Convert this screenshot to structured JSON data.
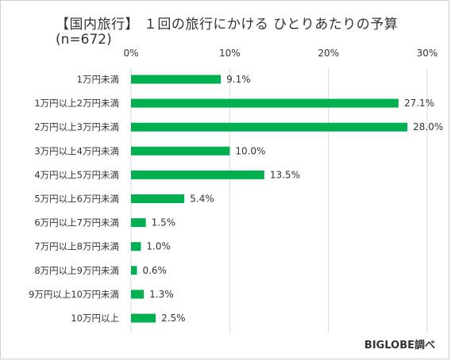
{
  "header": {
    "title": "【国内旅行】 １回の旅行にかける ひとりあたりの予算",
    "subtitle": "(n=672)"
  },
  "footer": {
    "source": "BIGLOBE調べ"
  },
  "colors": {
    "bar": "#00b050",
    "grid": "#d9d9d9"
  },
  "chart_data": {
    "type": "bar",
    "orientation": "horizontal",
    "title": "【国内旅行】 １回の旅行にかける ひとりあたりの予算",
    "subtitle": "(n=672)",
    "categories": [
      "1万円未満",
      "1万円以上2万円未満",
      "2万円以上3万円未満",
      "3万円以上4万円未満",
      "4万円以上5万円未満",
      "5万円以上6万円未満",
      "6万円以上7万円未満",
      "7万円以上8万円未満",
      "8万円以上9万円未満",
      "9万円以上10万円未満",
      "10万円以上"
    ],
    "values": [
      9.1,
      27.1,
      28.0,
      10.0,
      13.5,
      5.4,
      1.5,
      1.0,
      0.6,
      1.3,
      2.5
    ],
    "value_labels": [
      "9.1%",
      "27.1%",
      "28.0%",
      "10.0%",
      "13.5%",
      "5.4%",
      "1.5%",
      "1.0%",
      "0.6%",
      "1.3%",
      "2.5%"
    ],
    "xlim": [
      0,
      30
    ],
    "xticks": [
      0,
      10,
      20,
      30
    ],
    "xtick_labels": [
      "0%",
      "10%",
      "20%",
      "30%"
    ],
    "axis_position": "top",
    "grid": true,
    "legend": "none",
    "xlabel": "",
    "ylabel": ""
  }
}
